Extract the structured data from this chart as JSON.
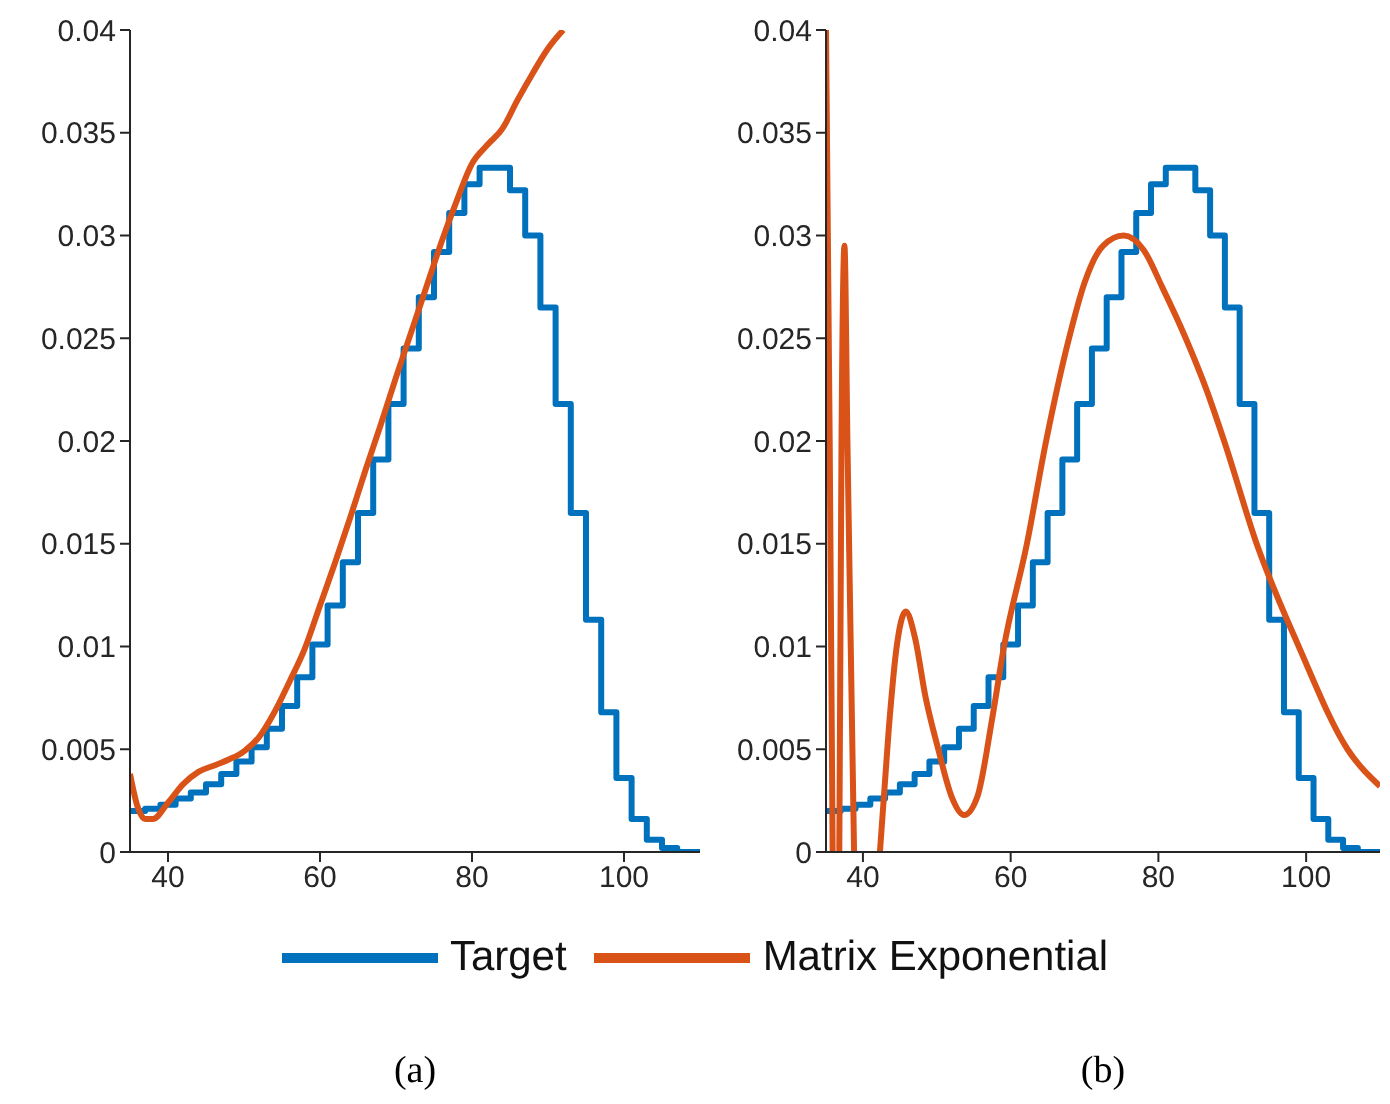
{
  "chart_data": [
    {
      "type": "step",
      "annotations": [
        "(a)"
      ],
      "xlim": [
        35,
        110
      ],
      "xticks": [
        40,
        60,
        80,
        100
      ],
      "ylim": [
        0,
        0.04
      ],
      "yticks": [
        0,
        0.005,
        0.01,
        0.015,
        0.02,
        0.025,
        0.03,
        0.035,
        0.04
      ],
      "legend": "bottom",
      "marker": "none",
      "line_style": "solid",
      "series": [
        {
          "name": "Target",
          "color": "#0072bd",
          "x": [
            35,
            37,
            39,
            41,
            43,
            45,
            47,
            49,
            51,
            53,
            55,
            57,
            59,
            61,
            63,
            65,
            67,
            69,
            71,
            73,
            75,
            77,
            79,
            81,
            83,
            85,
            87,
            89,
            91,
            93,
            95,
            97,
            99,
            101,
            103,
            105,
            107,
            109,
            110
          ],
          "values": [
            0.002,
            0.0021,
            0.0023,
            0.0026,
            0.0029,
            0.0033,
            0.0038,
            0.0044,
            0.0051,
            0.006,
            0.0071,
            0.0085,
            0.0101,
            0.012,
            0.0141,
            0.0165,
            0.0191,
            0.0218,
            0.0245,
            0.027,
            0.0292,
            0.0311,
            0.0325,
            0.0333,
            0.0333,
            0.0322,
            0.03,
            0.0265,
            0.0218,
            0.0165,
            0.0113,
            0.0068,
            0.0036,
            0.0016,
            0.0006,
            0.0002,
            0,
            0,
            0
          ]
        },
        {
          "name": "Matrix Exponential",
          "type": "line",
          "color": "#d95319",
          "x": [
            35,
            36,
            37,
            38,
            40,
            42,
            44,
            46,
            48,
            50,
            52,
            54,
            56,
            58,
            60,
            62,
            64,
            66,
            68,
            70,
            72,
            74,
            76,
            78,
            80,
            82,
            84,
            86,
            88,
            90,
            92
          ],
          "values": [
            0.0038,
            0.0022,
            0.0016,
            0.0016,
            0.0024,
            0.0033,
            0.0039,
            0.0042,
            0.0045,
            0.0049,
            0.0056,
            0.0068,
            0.0083,
            0.0099,
            0.012,
            0.0141,
            0.0163,
            0.0186,
            0.0208,
            0.0231,
            0.0253,
            0.0275,
            0.0297,
            0.0317,
            0.0335,
            0.0344,
            0.0352,
            0.0366,
            0.0379,
            0.0391,
            0.04
          ]
        }
      ]
    },
    {
      "type": "step",
      "annotations": [
        "(b)"
      ],
      "xlim": [
        35,
        110
      ],
      "xticks": [
        40,
        60,
        80,
        100
      ],
      "ylim": [
        0,
        0.04
      ],
      "yticks": [
        0,
        0.005,
        0.01,
        0.015,
        0.02,
        0.025,
        0.03,
        0.035,
        0.04
      ],
      "marker": "none",
      "line_style": "solid",
      "series": [
        {
          "color": "#0072bd",
          "x": [
            35,
            37,
            39,
            41,
            43,
            45,
            47,
            49,
            51,
            53,
            55,
            57,
            59,
            61,
            63,
            65,
            67,
            69,
            71,
            73,
            75,
            77,
            79,
            81,
            83,
            85,
            87,
            89,
            91,
            93,
            95,
            97,
            99,
            101,
            103,
            105,
            107,
            109,
            110
          ],
          "values": [
            0.002,
            0.0021,
            0.0023,
            0.0026,
            0.0029,
            0.0033,
            0.0038,
            0.0044,
            0.0051,
            0.006,
            0.0071,
            0.0085,
            0.0101,
            0.012,
            0.0141,
            0.0165,
            0.0191,
            0.0218,
            0.0245,
            0.027,
            0.0292,
            0.0311,
            0.0325,
            0.0333,
            0.0333,
            0.0322,
            0.03,
            0.0265,
            0.0218,
            0.0165,
            0.0113,
            0.0068,
            0.0036,
            0.0016,
            0.0006,
            0.0002,
            0,
            0,
            0
          ]
        },
        {
          "type": "line",
          "color": "#d95319",
          "x": [
            35,
            35.5,
            35.9,
            36.3,
            36.8,
            37.1,
            37.5,
            37.9,
            38.8,
            40,
            42.3,
            43.5,
            44.5,
            45.8,
            47,
            48.5,
            50.2,
            52,
            53.7,
            55.5,
            57.5,
            59.1,
            62.2,
            64.8,
            67.9,
            70,
            72.5,
            75.3,
            78,
            80.5,
            83.7,
            86.5,
            88.9,
            93.3,
            99,
            105.6,
            110
          ],
          "values": [
            0.04,
            0.02,
            0,
            null,
            0,
            0.02,
            0.0295,
            0.02,
            0,
            null,
            0,
            0.006,
            0.0098,
            0.0117,
            0.0105,
            0.0075,
            0.005,
            0.0027,
            0.0018,
            0.0027,
            0.0065,
            0.01,
            0.015,
            0.02,
            0.025,
            0.0277,
            0.0295,
            0.03,
            0.0293,
            0.0275,
            0.025,
            0.0225,
            0.02,
            0.015,
            0.01,
            0.005,
            0.0032
          ]
        }
      ]
    }
  ]
}
